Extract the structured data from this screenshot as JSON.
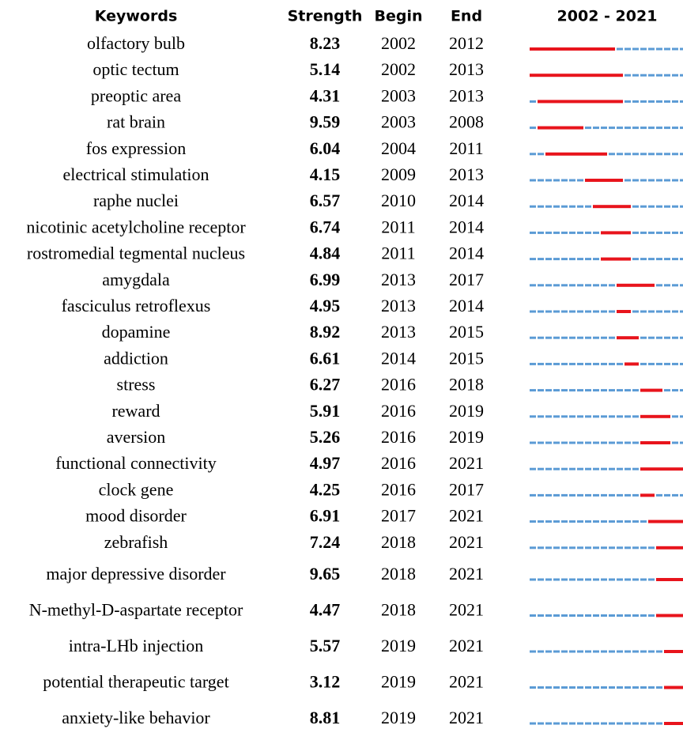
{
  "table": {
    "header": [
      "Keywords",
      "Strength",
      "Begin",
      "End",
      "2002 - 2021"
    ],
    "rows": [
      [
        "olfactory bulb",
        8.23,
        2002,
        2012
      ],
      [
        "optic tectum",
        5.14,
        2002,
        2013
      ],
      [
        "preoptic area",
        4.31,
        2003,
        2013
      ],
      [
        "rat brain",
        9.59,
        2003,
        2008
      ],
      [
        "fos expression",
        6.04,
        2004,
        2011
      ],
      [
        "electrical stimulation",
        4.15,
        2009,
        2013
      ],
      [
        "raphe nuclei",
        6.57,
        2010,
        2014
      ],
      [
        "nicotinic acetylcholine receptor",
        6.74,
        2011,
        2014
      ],
      [
        "rostromedial tegmental nucleus",
        4.84,
        2011,
        2014
      ],
      [
        "amygdala",
        6.99,
        2013,
        2017
      ],
      [
        "fasciculus retroflexus",
        4.95,
        2013,
        2014
      ],
      [
        "dopamine",
        8.92,
        2013,
        2015
      ],
      [
        "addiction",
        6.61,
        2014,
        2015
      ],
      [
        "stress",
        6.27,
        2016,
        2018
      ],
      [
        "reward",
        5.91,
        2016,
        2019
      ],
      [
        "aversion",
        5.26,
        2016,
        2019
      ],
      [
        "functional connectivity",
        4.97,
        2016,
        2021
      ],
      [
        "clock gene",
        4.25,
        2016,
        2017
      ],
      [
        "mood disorder",
        6.91,
        2017,
        2021
      ],
      [
        "zebrafish",
        7.24,
        2018,
        2021
      ],
      [
        "major depressive disorder",
        9.65,
        2018,
        2021
      ],
      [
        "N-methyl-D-aspartate receptor",
        4.47,
        2018,
        2021
      ],
      [
        "intra-LHb injection",
        5.57,
        2019,
        2021
      ],
      [
        "potential therapeutic target",
        3.12,
        2019,
        2021
      ],
      [
        "anxiety-like behavior",
        8.81,
        2019,
        2021
      ]
    ]
  }
}
